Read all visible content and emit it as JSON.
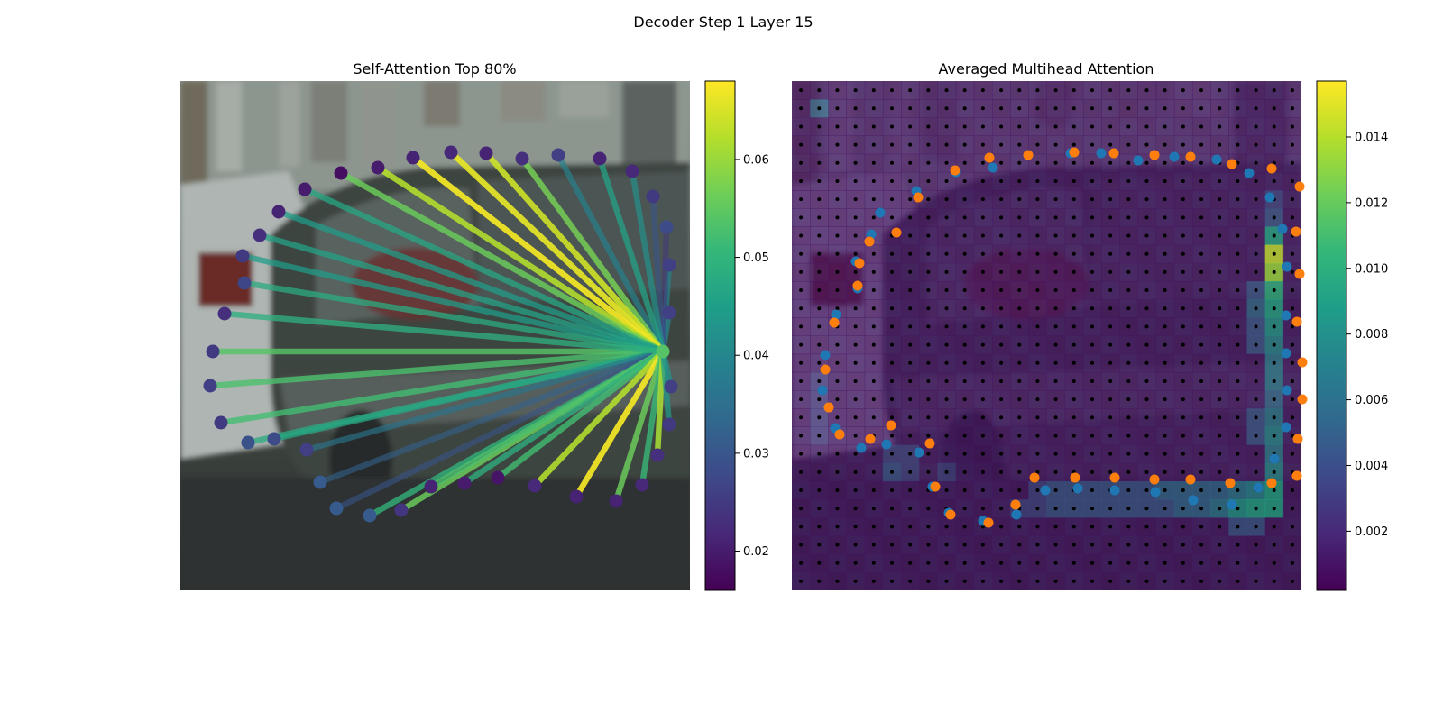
{
  "figure": {
    "suptitle": "Decoder Step 1 Layer 15"
  },
  "chart_data": [
    {
      "type": "line",
      "title": "Self-Attention Top 80%",
      "colorbar": {
        "min": 0.016,
        "max": 0.068,
        "ticks": [
          0.02,
          0.03,
          0.04,
          0.05,
          0.06
        ],
        "tick_labels": [
          "0.02",
          "0.03",
          "0.04",
          "0.05",
          "0.06"
        ]
      },
      "background": "blurred street photo: parked cars in front of a building",
      "query_point": {
        "x": 735,
        "y": 390,
        "weight": 0.054
      },
      "points": [
        {
          "x": 236,
          "y": 390,
          "w": 0.025,
          "e": 0.054
        },
        {
          "x": 233,
          "y": 428,
          "w": 0.026,
          "e": 0.053
        },
        {
          "x": 245,
          "y": 469,
          "w": 0.025,
          "e": 0.052
        },
        {
          "x": 275,
          "y": 491,
          "w": 0.029,
          "e": 0.048
        },
        {
          "x": 304,
          "y": 487,
          "w": 0.028,
          "e": 0.047
        },
        {
          "x": 340,
          "y": 499,
          "w": 0.026,
          "e": 0.036
        },
        {
          "x": 355,
          "y": 535,
          "w": 0.031,
          "e": 0.032
        },
        {
          "x": 373,
          "y": 564,
          "w": 0.031,
          "e": 0.03
        },
        {
          "x": 410,
          "y": 572,
          "w": 0.031,
          "e": 0.05
        },
        {
          "x": 445,
          "y": 566,
          "w": 0.024,
          "e": 0.056
        },
        {
          "x": 478,
          "y": 540,
          "w": 0.021,
          "e": 0.053
        },
        {
          "x": 515,
          "y": 536,
          "w": 0.02,
          "e": 0.049
        },
        {
          "x": 552,
          "y": 530,
          "w": 0.019,
          "e": 0.052
        },
        {
          "x": 593,
          "y": 539,
          "w": 0.022,
          "e": 0.062
        },
        {
          "x": 639,
          "y": 551,
          "w": 0.021,
          "e": 0.067
        },
        {
          "x": 683,
          "y": 556,
          "w": 0.021,
          "e": 0.056
        },
        {
          "x": 712,
          "y": 538,
          "w": 0.022,
          "e": 0.051
        },
        {
          "x": 729,
          "y": 505,
          "w": 0.023,
          "e": 0.061
        },
        {
          "x": 742,
          "y": 471,
          "w": 0.025,
          "e": 0.044
        },
        {
          "x": 744,
          "y": 429,
          "w": 0.026,
          "e": 0.043
        },
        {
          "x": 742,
          "y": 347,
          "w": 0.026,
          "e": 0.04
        },
        {
          "x": 742,
          "y": 294,
          "w": 0.026,
          "e": 0.039
        },
        {
          "x": 739,
          "y": 252,
          "w": 0.028,
          "e": 0.024
        },
        {
          "x": 724,
          "y": 218,
          "w": 0.025,
          "e": 0.03
        },
        {
          "x": 701,
          "y": 190,
          "w": 0.022,
          "e": 0.042
        },
        {
          "x": 665,
          "y": 176,
          "w": 0.021,
          "e": 0.046
        },
        {
          "x": 619,
          "y": 172,
          "w": 0.026,
          "e": 0.039
        },
        {
          "x": 579,
          "y": 176,
          "w": 0.023,
          "e": 0.057
        },
        {
          "x": 539,
          "y": 170,
          "w": 0.021,
          "e": 0.064
        },
        {
          "x": 500,
          "y": 169,
          "w": 0.022,
          "e": 0.066
        },
        {
          "x": 458,
          "y": 175,
          "w": 0.021,
          "e": 0.067
        },
        {
          "x": 419,
          "y": 186,
          "w": 0.02,
          "e": 0.062
        },
        {
          "x": 378,
          "y": 192,
          "w": 0.018,
          "e": 0.056
        },
        {
          "x": 338,
          "y": 210,
          "w": 0.02,
          "e": 0.047
        },
        {
          "x": 309,
          "y": 235,
          "w": 0.021,
          "e": 0.045
        },
        {
          "x": 288,
          "y": 261,
          "w": 0.023,
          "e": 0.046
        },
        {
          "x": 269,
          "y": 284,
          "w": 0.025,
          "e": 0.045
        },
        {
          "x": 271,
          "y": 314,
          "w": 0.027,
          "e": 0.048
        },
        {
          "x": 249,
          "y": 348,
          "w": 0.023,
          "e": 0.049
        }
      ]
    },
    {
      "type": "heatmap",
      "title": "Averaged Multihead Attention",
      "colorbar": {
        "min": 0.0002,
        "max": 0.0157,
        "ticks": [
          0.002,
          0.004,
          0.006,
          0.008,
          0.01,
          0.012,
          0.014
        ],
        "tick_labels": [
          "0.002",
          "0.004",
          "0.006",
          "0.008",
          "0.010",
          "0.012",
          "0.014"
        ]
      },
      "grid": {
        "rows": 28,
        "cols": 28
      },
      "hot_cells": [
        {
          "r": 1,
          "c": 1,
          "v": 0.005
        },
        {
          "r": 6,
          "c": 26,
          "v": 0.003
        },
        {
          "r": 7,
          "c": 26,
          "v": 0.004
        },
        {
          "r": 8,
          "c": 26,
          "v": 0.009
        },
        {
          "r": 9,
          "c": 26,
          "v": 0.0145
        },
        {
          "r": 10,
          "c": 26,
          "v": 0.0135
        },
        {
          "r": 11,
          "c": 26,
          "v": 0.01
        },
        {
          "r": 12,
          "c": 26,
          "v": 0.009
        },
        {
          "r": 13,
          "c": 26,
          "v": 0.008
        },
        {
          "r": 14,
          "c": 26,
          "v": 0.007
        },
        {
          "r": 15,
          "c": 26,
          "v": 0.006
        },
        {
          "r": 16,
          "c": 26,
          "v": 0.006
        },
        {
          "r": 17,
          "c": 26,
          "v": 0.005
        },
        {
          "r": 18,
          "c": 26,
          "v": 0.006
        },
        {
          "r": 19,
          "c": 26,
          "v": 0.007
        },
        {
          "r": 20,
          "c": 26,
          "v": 0.006
        },
        {
          "r": 21,
          "c": 26,
          "v": 0.007
        },
        {
          "r": 22,
          "c": 26,
          "v": 0.009
        },
        {
          "r": 23,
          "c": 26,
          "v": 0.009
        },
        {
          "r": 11,
          "c": 25,
          "v": 0.004
        },
        {
          "r": 12,
          "c": 25,
          "v": 0.005
        },
        {
          "r": 13,
          "c": 25,
          "v": 0.004
        },
        {
          "r": 14,
          "c": 25,
          "v": 0.004
        },
        {
          "r": 18,
          "c": 25,
          "v": 0.004
        },
        {
          "r": 19,
          "c": 25,
          "v": 0.004
        },
        {
          "r": 22,
          "c": 23,
          "v": 0.005
        },
        {
          "r": 22,
          "c": 24,
          "v": 0.006
        },
        {
          "r": 22,
          "c": 25,
          "v": 0.007
        },
        {
          "r": 23,
          "c": 23,
          "v": 0.006
        },
        {
          "r": 23,
          "c": 24,
          "v": 0.008
        },
        {
          "r": 23,
          "c": 25,
          "v": 0.009
        },
        {
          "r": 24,
          "c": 24,
          "v": 0.004
        },
        {
          "r": 24,
          "c": 25,
          "v": 0.004
        },
        {
          "r": 22,
          "c": 13,
          "v": 0.003
        },
        {
          "r": 22,
          "c": 14,
          "v": 0.004
        },
        {
          "r": 22,
          "c": 15,
          "v": 0.004
        },
        {
          "r": 22,
          "c": 16,
          "v": 0.004
        },
        {
          "r": 22,
          "c": 17,
          "v": 0.004
        },
        {
          "r": 22,
          "c": 18,
          "v": 0.004
        },
        {
          "r": 22,
          "c": 19,
          "v": 0.004
        },
        {
          "r": 22,
          "c": 20,
          "v": 0.005
        },
        {
          "r": 22,
          "c": 21,
          "v": 0.005
        },
        {
          "r": 22,
          "c": 22,
          "v": 0.005
        },
        {
          "r": 23,
          "c": 12,
          "v": 0.003
        },
        {
          "r": 23,
          "c": 13,
          "v": 0.003
        },
        {
          "r": 23,
          "c": 14,
          "v": 0.004
        },
        {
          "r": 23,
          "c": 15,
          "v": 0.004
        },
        {
          "r": 23,
          "c": 16,
          "v": 0.004
        },
        {
          "r": 23,
          "c": 17,
          "v": 0.004
        },
        {
          "r": 23,
          "c": 18,
          "v": 0.004
        },
        {
          "r": 23,
          "c": 19,
          "v": 0.004
        },
        {
          "r": 23,
          "c": 20,
          "v": 0.004
        },
        {
          "r": 23,
          "c": 21,
          "v": 0.005
        },
        {
          "r": 23,
          "c": 22,
          "v": 0.005
        },
        {
          "r": 21,
          "c": 5,
          "v": 0.004
        },
        {
          "r": 21,
          "c": 6,
          "v": 0.003
        },
        {
          "r": 20,
          "c": 5,
          "v": 0.003
        },
        {
          "r": 20,
          "c": 6,
          "v": 0.003
        },
        {
          "r": 21,
          "c": 8,
          "v": 0.003
        },
        {
          "r": 16,
          "c": 1,
          "v": 0.0025
        },
        {
          "r": 17,
          "c": 1,
          "v": 0.0025
        },
        {
          "r": 18,
          "c": 1,
          "v": 0.0025
        },
        {
          "r": 19,
          "c": 1,
          "v": 0.0025
        }
      ],
      "series": [
        {
          "color": "#1f77b4",
          "points": [
            [
              1187,
              170
            ],
            [
              1221,
              170
            ],
            [
              1262,
              178
            ],
            [
              1302,
              174
            ],
            [
              1349,
              177
            ],
            [
              1385,
              192
            ],
            [
              1408,
              219
            ],
            [
              1422,
              254
            ],
            [
              1427,
              296
            ],
            [
              1426,
              350
            ],
            [
              1426,
              392
            ],
            [
              1427,
              433
            ],
            [
              1426,
              474
            ],
            [
              1413,
              509
            ],
            [
              1395,
              541
            ],
            [
              1366,
              560
            ],
            [
              1323,
              555
            ],
            [
              1281,
              546
            ],
            [
              1236,
              544
            ],
            [
              1195,
              542
            ],
            [
              1159,
              544
            ],
            [
              1127,
              571
            ],
            [
              1090,
              578
            ],
            [
              1052,
              569
            ],
            [
              1034,
              540
            ],
            [
              1019,
              502
            ],
            [
              983,
              493
            ],
            [
              955,
              497
            ],
            [
              926,
              475
            ],
            [
              912,
              433
            ],
            [
              915,
              394
            ],
            [
              927,
              349
            ],
            [
              951,
              320
            ],
            [
              949,
              290
            ],
            [
              966,
              260
            ],
            [
              976,
              236
            ],
            [
              1016,
              212
            ],
            [
              1060,
              191
            ],
            [
              1101,
              186
            ]
          ]
        },
        {
          "color": "#ff7f0e",
          "points": [
            [
              1191,
              169
            ],
            [
              1235,
              170
            ],
            [
              1280,
              172
            ],
            [
              1320,
              174
            ],
            [
              1366,
              182
            ],
            [
              1410,
              187
            ],
            [
              1441,
              207
            ],
            [
              1437,
              257
            ],
            [
              1441,
              304
            ],
            [
              1438,
              357
            ],
            [
              1444,
              402
            ],
            [
              1444,
              443
            ],
            [
              1439,
              487
            ],
            [
              1438,
              528
            ],
            [
              1410,
              536
            ],
            [
              1364,
              536
            ],
            [
              1320,
              532
            ],
            [
              1280,
              532
            ],
            [
              1236,
              530
            ],
            [
              1192,
              530
            ],
            [
              1147,
              530
            ],
            [
              1126,
              560
            ],
            [
              1096,
              580
            ],
            [
              1054,
              571
            ],
            [
              1037,
              540
            ],
            [
              1031,
              492
            ],
            [
              988,
              472
            ],
            [
              965,
              487
            ],
            [
              931,
              482
            ],
            [
              919,
              452
            ],
            [
              915,
              410
            ],
            [
              925,
              358
            ],
            [
              951,
              317
            ],
            [
              953,
              292
            ],
            [
              964,
              268
            ],
            [
              994,
              258
            ],
            [
              1018,
              219
            ],
            [
              1059,
              189
            ],
            [
              1097,
              175
            ],
            [
              1140,
              172
            ]
          ]
        }
      ]
    }
  ]
}
